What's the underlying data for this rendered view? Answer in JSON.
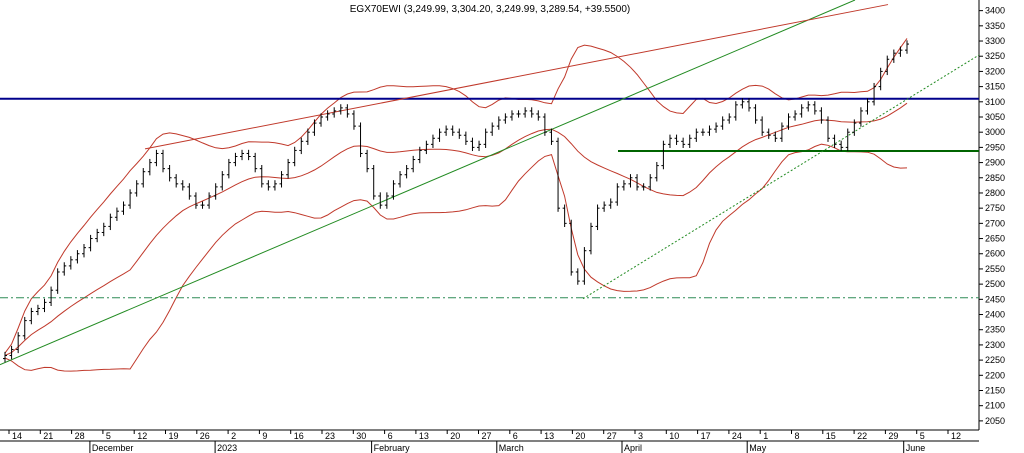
{
  "chart_data": {
    "type": "line",
    "title": "EGX70EWI (3,249.99, 3,304.20, 3,249.99, 3,289.54, +39.5500)",
    "ylim": [
      2020,
      3435
    ],
    "y_ticks": [
      2050,
      2100,
      2150,
      2200,
      2250,
      2300,
      2350,
      2400,
      2450,
      2500,
      2550,
      2600,
      2650,
      2700,
      2750,
      2800,
      2850,
      2900,
      2950,
      3000,
      3050,
      3100,
      3150,
      3200,
      3250,
      3300,
      3350,
      3400
    ],
    "x_day_labels": [
      "14",
      "21",
      "28",
      "5",
      "12",
      "19",
      "26",
      "2",
      "9",
      "16",
      "23",
      "30",
      "6",
      "13",
      "20",
      "27",
      "6",
      "13",
      "20",
      "27",
      "3",
      "10",
      "17",
      "24",
      "1",
      "8",
      "15",
      "22",
      "29",
      "5",
      "12"
    ],
    "x_month_labels": [
      "December",
      "2023",
      "February",
      "March",
      "April",
      "May",
      "June"
    ],
    "series": [
      {
        "values": [
          2265,
          2285,
          2330,
          2380,
          2410,
          2420,
          2440,
          2480,
          2540,
          2560,
          2580,
          2600,
          2620,
          2650,
          2670,
          2690,
          2720,
          2740,
          2760,
          2800,
          2830,
          2870,
          2900,
          2930,
          2880,
          2850,
          2830,
          2820,
          2790,
          2760,
          2760,
          2790,
          2820,
          2860,
          2900,
          2920,
          2930,
          2920,
          2880,
          2830,
          2820,
          2830,
          2860,
          2900,
          2940,
          2970,
          3000,
          3030,
          3050,
          3060,
          3070,
          3080,
          3060,
          3020,
          2930,
          2880,
          2790,
          2760,
          2790,
          2830,
          2860,
          2880,
          2910,
          2940,
          2960,
          2980,
          3000,
          3010,
          3000,
          2990,
          2970,
          2950,
          2960,
          3000,
          3020,
          3040,
          3050,
          3060,
          3060,
          3070,
          3060,
          3050,
          3000,
          2970,
          2750,
          2700,
          2540,
          2510,
          2610,
          2690,
          2750,
          2760,
          2770,
          2820,
          2830,
          2850,
          2820,
          2820,
          2850,
          2890,
          2960,
          2980,
          2970,
          2960,
          2980,
          3000,
          3000,
          3010,
          3020,
          3040,
          3050,
          3090,
          3100,
          3080,
          3040,
          3000,
          2990,
          2980,
          3020,
          3050,
          3060,
          3080,
          3090,
          3070,
          3040,
          2980,
          2960,
          2950,
          3000,
          3030,
          3070,
          3100,
          3150,
          3200,
          3240,
          3260,
          3270,
          3290
        ]
      }
    ],
    "support_line": 2455,
    "horizontal_resistance": 3110,
    "horizontal_support_segment": 2938,
    "legend": "none",
    "grid": false
  }
}
